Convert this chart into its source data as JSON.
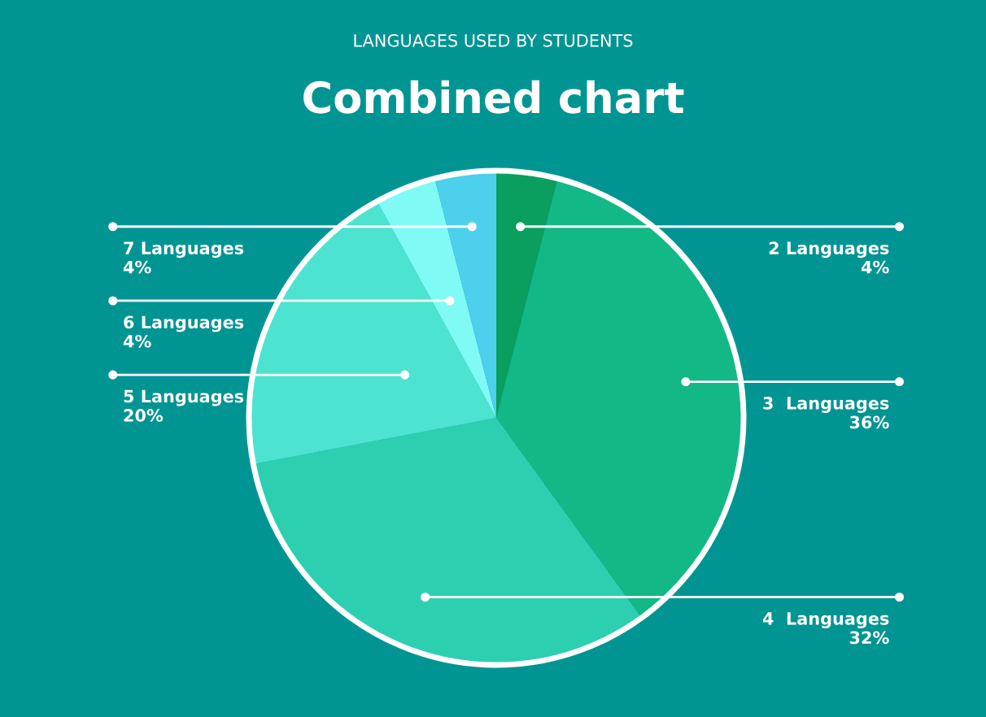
{
  "chart_data": {
    "type": "pie",
    "title": "Combined chart",
    "subtitle": "LANGUAGES USED BY STUDENTS",
    "categories": [
      "2 Languages",
      "3  Languages",
      "4  Languages",
      "5 Languages",
      "6 Languages",
      "7 Languages"
    ],
    "values": [
      4,
      36,
      32,
      20,
      4,
      4
    ],
    "colors": [
      "#0a9e5f",
      "#12b886",
      "#2dcfb1",
      "#4de3d1",
      "#7ffaf5",
      "#4dd0ec"
    ],
    "value_labels": [
      "4%",
      "36%",
      "32%",
      "20%",
      "4%",
      "4%"
    ],
    "legend": false
  }
}
